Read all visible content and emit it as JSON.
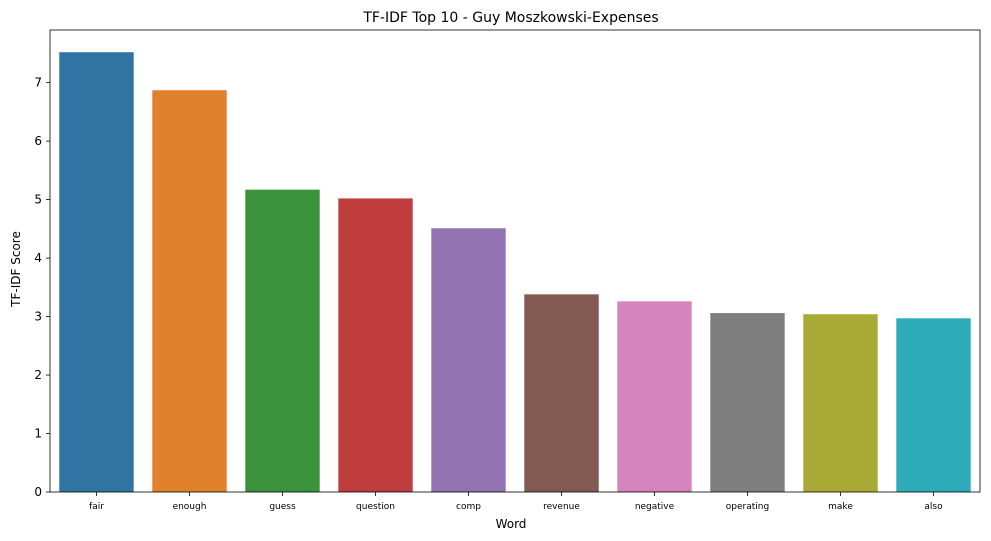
{
  "chart_data": {
    "type": "bar",
    "title": "TF-IDF Top 10 - Guy Moszkowski-Expenses",
    "xlabel": "Word",
    "ylabel": "TF-IDF Score",
    "categories": [
      "fair",
      "enough",
      "guess",
      "question",
      "comp",
      "revenue",
      "negative",
      "operating",
      "make",
      "also"
    ],
    "values": [
      7.52,
      6.87,
      5.17,
      5.02,
      4.51,
      3.38,
      3.26,
      3.06,
      3.04,
      2.97
    ],
    "colors": [
      "#3274a1",
      "#e1812c",
      "#3a923a",
      "#c03d3e",
      "#9372b2",
      "#845b53",
      "#d684bd",
      "#7f7f7f",
      "#a9aa35",
      "#2eabb8"
    ],
    "ylim": [
      0,
      7.9
    ],
    "yticks": [
      "0",
      "1",
      "2",
      "3",
      "4",
      "5",
      "6",
      "7"
    ],
    "grid": false,
    "legend": "none"
  }
}
